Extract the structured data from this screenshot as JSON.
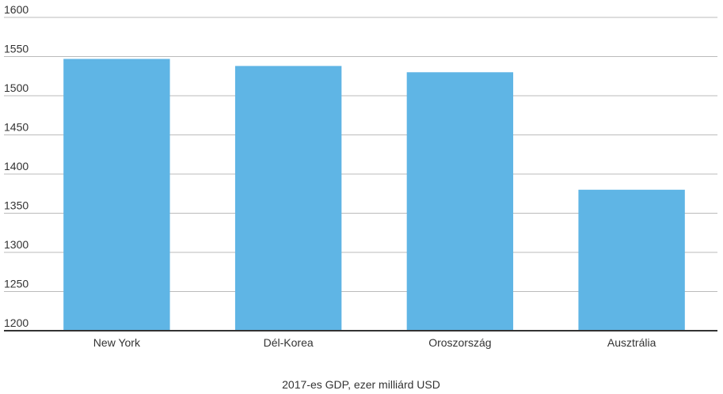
{
  "chart_data": {
    "type": "bar",
    "x_label": "2017-es GDP, ezer milliárd USD",
    "categories": [
      "New York",
      "Dél-Korea",
      "Oroszország",
      "Ausztrália"
    ],
    "values": [
      1547,
      1538,
      1530,
      1380
    ],
    "color": "#5fb5e5",
    "ylim": [
      1200,
      1600
    ],
    "yticks": [
      1200,
      1250,
      1300,
      1350,
      1400,
      1450,
      1500,
      1550,
      1600
    ],
    "grid": true
  }
}
